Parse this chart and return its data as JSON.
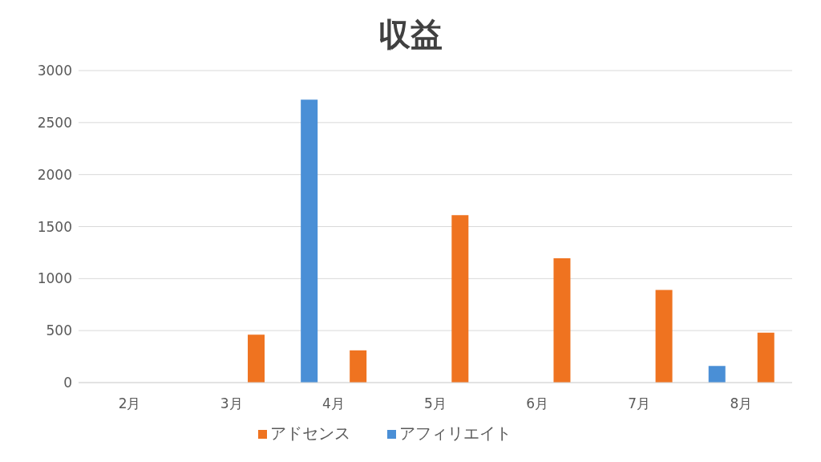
{
  "chart_data": {
    "type": "bar",
    "title": "収益",
    "categories": [
      "2月",
      "3月",
      "4月",
      "5月",
      "6月",
      "7月",
      "8月"
    ],
    "series": [
      {
        "name": "アフィリエイト",
        "color": "#4a8fd6",
        "values": [
          0,
          0,
          2720,
          0,
          0,
          0,
          160
        ]
      },
      {
        "name": "アドセンス",
        "color": "#ef7320",
        "values": [
          0,
          460,
          310,
          1610,
          1195,
          890,
          480
        ]
      }
    ],
    "ylim": [
      0,
      3000
    ],
    "yticks": [
      0,
      500,
      1000,
      1500,
      2000,
      2500,
      3000
    ],
    "grid": "y",
    "legend": "bottom"
  }
}
